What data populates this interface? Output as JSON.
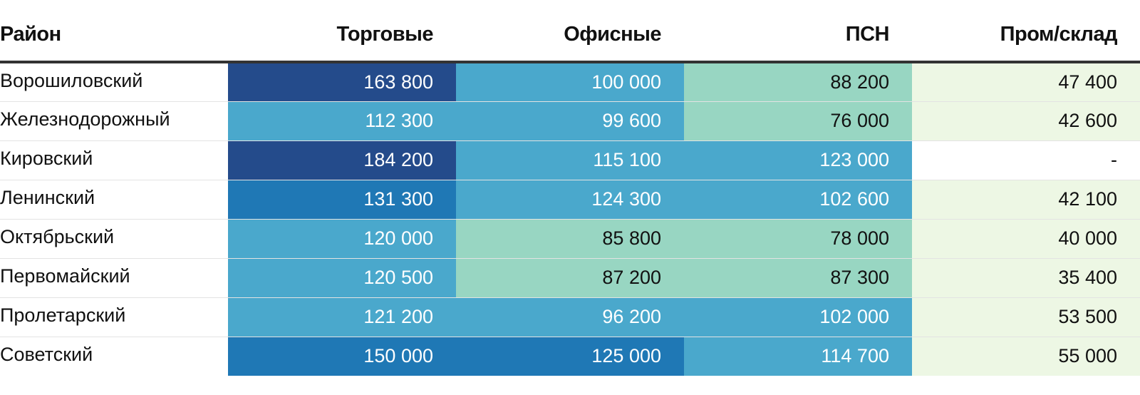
{
  "chart_data": {
    "type": "table",
    "columns": [
      "Район",
      "Торговые",
      "Офисные",
      "ПСН",
      "Пром/склад"
    ],
    "rows": [
      {
        "district": "Ворошиловский",
        "values": [
          "163 800",
          "100 000",
          "88 200",
          "47 400"
        ],
        "numbers": [
          163800,
          100000,
          88200,
          47400
        ]
      },
      {
        "district": "Железнодорожный",
        "values": [
          "112 300",
          "99 600",
          "76 000",
          "42 600"
        ],
        "numbers": [
          112300,
          99600,
          76000,
          42600
        ]
      },
      {
        "district": "Кировский",
        "values": [
          "184 200",
          "115 100",
          "123 000",
          "-"
        ],
        "numbers": [
          184200,
          115100,
          123000,
          null
        ]
      },
      {
        "district": "Ленинский",
        "values": [
          "131 300",
          "124 300",
          "102 600",
          "42 100"
        ],
        "numbers": [
          131300,
          124300,
          102600,
          42100
        ]
      },
      {
        "district": "Октябрьский",
        "values": [
          "120 000",
          "85 800",
          "78 000",
          "40 000"
        ],
        "numbers": [
          120000,
          85800,
          78000,
          40000
        ]
      },
      {
        "district": "Первомайский",
        "values": [
          "120 500",
          "87 200",
          "87 300",
          "35 400"
        ],
        "numbers": [
          120500,
          87200,
          87300,
          35400
        ]
      },
      {
        "district": "Пролетарский",
        "values": [
          "121 200",
          "96 200",
          "102 000",
          "53 500"
        ],
        "numbers": [
          121200,
          96200,
          102000,
          53500
        ]
      },
      {
        "district": "Советский",
        "values": [
          "150 000",
          "125 000",
          "114 700",
          "55 000"
        ],
        "numbers": [
          150000,
          125000,
          114700,
          55000
        ]
      }
    ],
    "color_scale": {
      "bins": [
        {
          "min": 0,
          "max": 60000,
          "color": "#edf7e4",
          "text": "dark"
        },
        {
          "min": 60000,
          "max": 90000,
          "color": "#98d6c2",
          "text": "dark"
        },
        {
          "min": 90000,
          "max": 125000,
          "color": "#4aa8cc",
          "text": "light"
        },
        {
          "min": 125000,
          "max": 160000,
          "color": "#1f78b5",
          "text": "light"
        },
        {
          "min": 160000,
          "max": 1000000,
          "color": "#244b8b",
          "text": "light"
        }
      ],
      "empty_color": "#ffffff"
    }
  }
}
